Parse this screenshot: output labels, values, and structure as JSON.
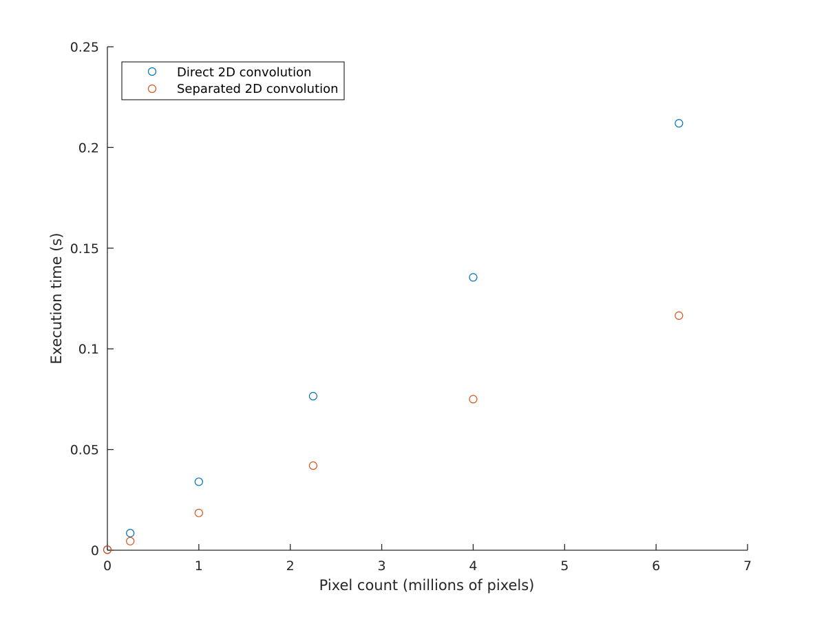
{
  "chart_data": {
    "type": "scatter",
    "title": "",
    "xlabel": "Pixel count (millions of pixels)",
    "ylabel": "Execution time (s)",
    "xlim": [
      0,
      7
    ],
    "ylim": [
      0,
      0.25
    ],
    "xticks": [
      0,
      1,
      2,
      3,
      4,
      5,
      6,
      7
    ],
    "yticks": [
      0,
      0.05,
      0.1,
      0.15,
      0.2,
      0.25
    ],
    "xtick_labels": [
      "0",
      "1",
      "2",
      "3",
      "4",
      "5",
      "6",
      "7"
    ],
    "ytick_labels": [
      "0",
      "0.05",
      "0.1",
      "0.15",
      "0.2",
      "0.25"
    ],
    "grid": false,
    "legend_position": "top-left",
    "series": [
      {
        "name": "Direct 2D convolution",
        "color": "#0072BD",
        "marker": "circle-open",
        "x": [
          0,
          0.25,
          1,
          2.25,
          4,
          6.25
        ],
        "y": [
          0.0003,
          0.0085,
          0.034,
          0.0765,
          0.1355,
          0.212
        ]
      },
      {
        "name": "Separated 2D convolution",
        "color": "#D95319",
        "marker": "circle-open",
        "x": [
          0,
          0.25,
          1,
          2.25,
          4,
          6.25
        ],
        "y": [
          0.0002,
          0.0045,
          0.0185,
          0.042,
          0.075,
          0.1165
        ]
      }
    ]
  }
}
